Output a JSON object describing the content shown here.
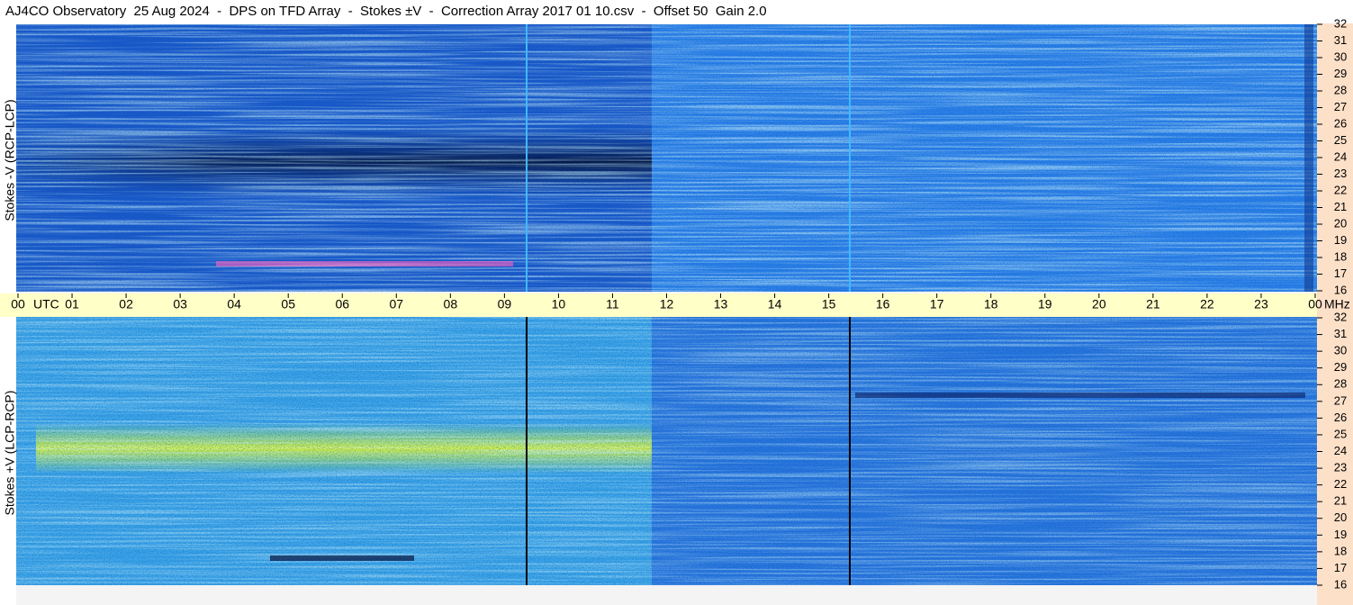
{
  "chart_data": {
    "type": "spectrogram",
    "title": "AJ4CO Observatory  25 Aug 2024  -  DPS on TFD Array  -  Stokes ±V  -  Correction Array 2017 01 10.csv  -  Offset 50  Gain 2.0",
    "x_unit": "UTC",
    "y_unit": "MHz",
    "categories": [
      "00",
      "01",
      "02",
      "03",
      "04",
      "05",
      "06",
      "07",
      "08",
      "09",
      "10",
      "11",
      "12",
      "13",
      "14",
      "15",
      "16",
      "17",
      "18",
      "19",
      "20",
      "21",
      "22",
      "23",
      "00"
    ],
    "panels": [
      {
        "ylabel": "Stokes -V (RCP-LCP)",
        "ylim": [
          16,
          32
        ],
        "yticks": [
          16,
          17,
          18,
          19,
          20,
          21,
          22,
          23,
          24,
          25,
          26,
          27,
          28,
          29,
          30,
          31,
          32
        ]
      },
      {
        "ylabel": "Stokes +V (LCP-RCP)",
        "ylim": [
          16,
          32
        ],
        "yticks": [
          16,
          17,
          18,
          19,
          20,
          21,
          22,
          23,
          24,
          25,
          26,
          27,
          28,
          29,
          30,
          31,
          32
        ]
      }
    ]
  }
}
